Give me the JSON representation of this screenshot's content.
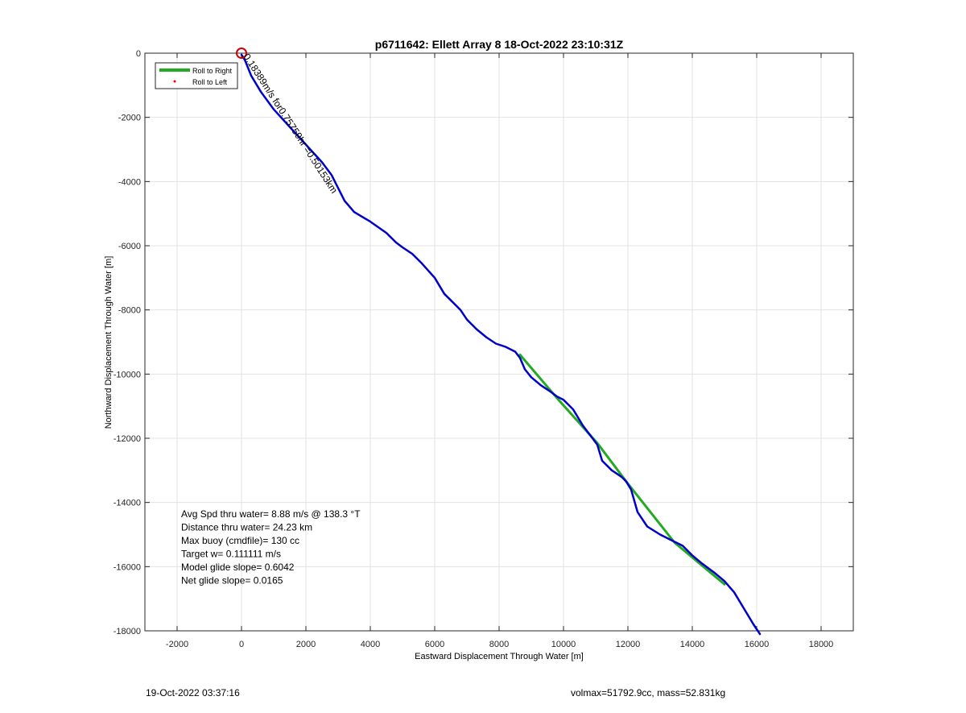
{
  "chart_data": {
    "type": "line",
    "title": "p6711642: Ellett Array 8 18-Oct-2022 23:10:31Z",
    "xlabel": "Eastward Displacement Through Water [m]",
    "ylabel": "Northward Displacement Through Water [m]",
    "xlim": [
      -3000,
      19000
    ],
    "ylim": [
      -18000,
      0
    ],
    "xticks": [
      -2000,
      0,
      2000,
      4000,
      6000,
      8000,
      10000,
      12000,
      14000,
      16000,
      18000
    ],
    "yticks": [
      0,
      -2000,
      -4000,
      -6000,
      -8000,
      -10000,
      -12000,
      -14000,
      -16000,
      -18000
    ],
    "grid": true,
    "legend_position": "top-left",
    "legend": [
      {
        "label": "Roll to Right",
        "color": "#22aa22",
        "style": "line"
      },
      {
        "label": "Roll to Left",
        "color": "#ee0000",
        "style": "dot"
      }
    ],
    "series": [
      {
        "name": "Roll to Right",
        "color": "#22aa22",
        "x": [
          8650,
          9800,
          11050,
          11950,
          13450,
          15000
        ],
        "y": [
          -9400,
          -10750,
          -12150,
          -13350,
          -15250,
          -16550
        ]
      },
      {
        "color": "#0000cc",
        "x": [
          0,
          100,
          300,
          600,
          1000,
          1500,
          2000,
          2500,
          2800,
          3000,
          3200,
          3500,
          4000,
          4500,
          4800,
          5000,
          5300,
          5600,
          6000,
          6300,
          6500,
          6800,
          7000,
          7300,
          7600,
          7900,
          8200,
          8500,
          8650,
          8800,
          9000,
          9300,
          9600,
          9800,
          10000,
          10300,
          10600,
          10900,
          11050,
          11200,
          11500,
          11800,
          11950,
          12100,
          12300,
          12600,
          13000,
          13400,
          13700,
          14000,
          14300,
          14700,
          15000,
          15300,
          15600,
          15900,
          16100
        ],
        "y": [
          -50,
          -200,
          -700,
          -1200,
          -1750,
          -2300,
          -2850,
          -3400,
          -3800,
          -4200,
          -4600,
          -4950,
          -5250,
          -5600,
          -5900,
          -6050,
          -6250,
          -6550,
          -7000,
          -7500,
          -7700,
          -8000,
          -8300,
          -8600,
          -8850,
          -9050,
          -9150,
          -9300,
          -9500,
          -9850,
          -10100,
          -10350,
          -10550,
          -10700,
          -10800,
          -11100,
          -11600,
          -12000,
          -12200,
          -12700,
          -13000,
          -13200,
          -13350,
          -13600,
          -14300,
          -14750,
          -15000,
          -15200,
          -15350,
          -15650,
          -15900,
          -16200,
          -16450,
          -16800,
          -17300,
          -17800,
          -18100
        ]
      }
    ],
    "start_marker": {
      "x": 0,
      "y": 0,
      "color": "#cc0000"
    },
    "annotation": {
      "text": "0.18389m/s for0.75759hr =0.50153km",
      "x": 0,
      "y": 0,
      "angle_deg": 57
    },
    "info_lines": [
      "Avg Spd thru water=  8.88 m/s @ 138.3 °T",
      "Distance thru water= 24.23 km",
      "Max buoy (cmdfile)= 130 cc",
      "Target w= 0.111111 m/s",
      "Model glide slope= 0.6042",
      "Net glide slope= 0.0165"
    ]
  },
  "footer": {
    "left": "19-Oct-2022 03:37:16",
    "right": "volmax=51792.9cc, mass=52.831kg"
  }
}
